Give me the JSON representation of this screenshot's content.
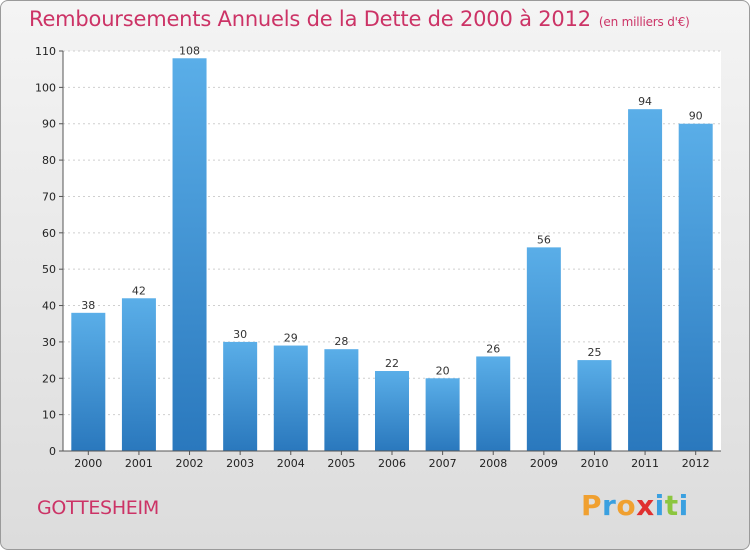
{
  "title": "Remboursements Annuels de la Dette de 2000 à 2012",
  "unit": "(en milliers d'€)",
  "commune": "GOTTESHEIM",
  "logo": {
    "letters": [
      {
        "ch": "P",
        "color": "#f0a030"
      },
      {
        "ch": "r",
        "color": "#3aa0e0"
      },
      {
        "ch": "o",
        "color": "#f0a030"
      },
      {
        "ch": "x",
        "color": "#e03030"
      },
      {
        "ch": "i",
        "color": "#3aa0e0"
      },
      {
        "ch": "t",
        "color": "#8cc63f"
      },
      {
        "ch": "i",
        "color": "#3aa0e0"
      }
    ]
  },
  "chart_data": {
    "type": "bar",
    "categories": [
      "2000",
      "2001",
      "2002",
      "2003",
      "2004",
      "2005",
      "2006",
      "2007",
      "2008",
      "2009",
      "2010",
      "2011",
      "2012"
    ],
    "values": [
      38,
      42,
      108,
      30,
      29,
      28,
      22,
      20,
      26,
      56,
      25,
      94,
      90
    ],
    "ylim": [
      0,
      110
    ],
    "yticks": [
      0,
      10,
      20,
      30,
      40,
      50,
      60,
      70,
      80,
      90,
      100,
      110
    ],
    "grid": true,
    "bar_color": "#3d8fd6"
  }
}
